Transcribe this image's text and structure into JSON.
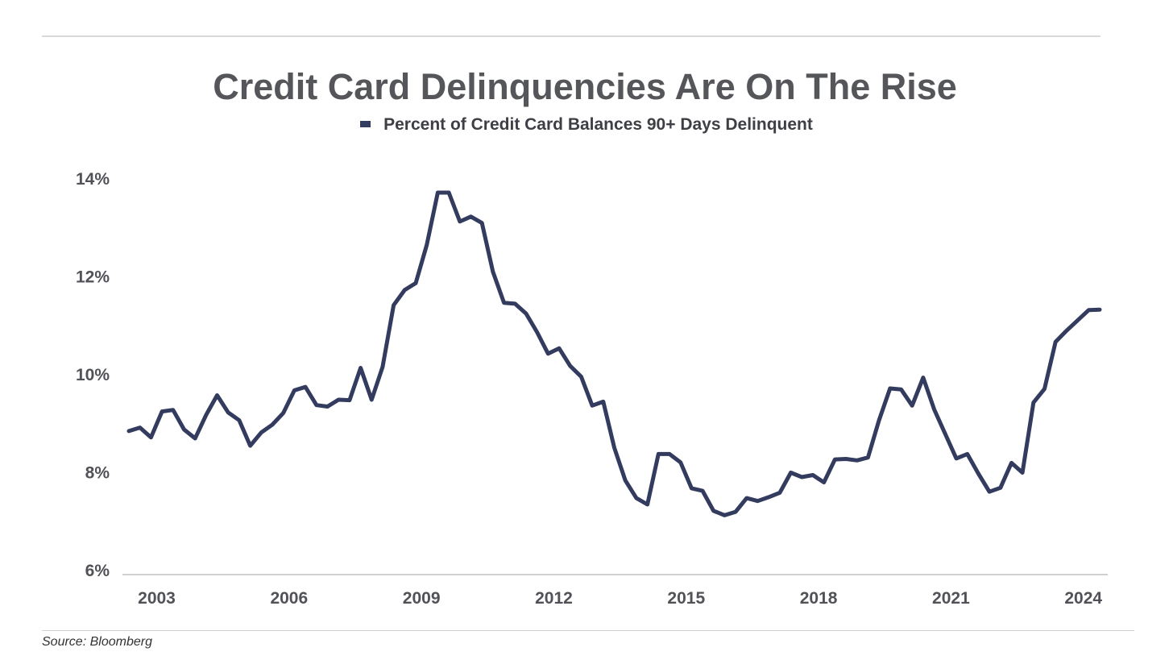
{
  "chart_data": {
    "type": "line",
    "title": "Credit Card Delinquencies Are On The Rise",
    "legend": "Percent of Credit Card Balances 90+ Days Delinquent",
    "source": "Source: Bloomberg",
    "series_color": "#333b5e",
    "xlabel": "",
    "ylabel": "",
    "ylim": [
      6,
      14
    ],
    "xlim": [
      2002.87,
      2024.87
    ],
    "yticks": [
      6,
      8,
      10,
      12,
      14
    ],
    "ytick_labels": [
      "6%",
      "8%",
      "10%",
      "12%",
      "14%"
    ],
    "xticks": [
      2003.5,
      2006.5,
      2009.5,
      2012.5,
      2015.5,
      2018.5,
      2021.5,
      2024.5
    ],
    "xtick_labels": [
      "2003",
      "2006",
      "2009",
      "2012",
      "2015",
      "2018",
      "2021",
      "2024"
    ],
    "series": [
      {
        "name": "Percent of Credit Card Balances 90+ Days Delinquent",
        "x": [
          2002.87,
          2003.12,
          2003.37,
          2003.62,
          2003.87,
          2004.12,
          2004.37,
          2004.62,
          2004.87,
          2005.12,
          2005.37,
          2005.62,
          2005.87,
          2006.12,
          2006.37,
          2006.62,
          2006.87,
          2007.12,
          2007.37,
          2007.62,
          2007.87,
          2008.12,
          2008.37,
          2008.62,
          2008.87,
          2009.12,
          2009.37,
          2009.62,
          2009.87,
          2010.12,
          2010.37,
          2010.62,
          2010.87,
          2011.12,
          2011.37,
          2011.62,
          2011.87,
          2012.12,
          2012.37,
          2012.62,
          2012.87,
          2013.12,
          2013.37,
          2013.62,
          2013.87,
          2014.12,
          2014.37,
          2014.62,
          2014.87,
          2015.12,
          2015.37,
          2015.62,
          2015.87,
          2016.12,
          2016.37,
          2016.62,
          2016.87,
          2017.12,
          2017.37,
          2017.62,
          2017.87,
          2018.12,
          2018.37,
          2018.62,
          2018.87,
          2019.12,
          2019.37,
          2019.62,
          2019.87,
          2020.12,
          2020.37,
          2020.62,
          2020.87,
          2021.12,
          2021.37,
          2021.62,
          2021.87,
          2022.12,
          2022.37,
          2022.62,
          2022.87,
          2023.12,
          2023.37,
          2023.62,
          2023.87,
          2024.12,
          2024.37,
          2024.62,
          2024.87
        ],
        "values": [
          8.85,
          8.92,
          8.72,
          9.25,
          9.28,
          8.88,
          8.7,
          9.18,
          9.58,
          9.23,
          9.07,
          8.55,
          8.82,
          8.98,
          9.22,
          9.68,
          9.75,
          9.38,
          9.35,
          9.49,
          9.48,
          10.14,
          9.49,
          10.16,
          11.42,
          11.73,
          11.87,
          12.65,
          13.72,
          13.72,
          13.13,
          13.23,
          13.1,
          12.1,
          11.47,
          11.45,
          11.25,
          10.87,
          10.43,
          10.54,
          10.18,
          9.96,
          9.37,
          9.45,
          8.51,
          7.84,
          7.48,
          7.35,
          8.38,
          8.38,
          8.21,
          7.68,
          7.63,
          7.22,
          7.13,
          7.2,
          7.48,
          7.42,
          7.5,
          7.59,
          8.0,
          7.91,
          7.95,
          7.8,
          8.27,
          8.28,
          8.25,
          8.31,
          9.07,
          9.72,
          9.7,
          9.37,
          9.94,
          9.29,
          8.79,
          8.29,
          8.38,
          7.98,
          7.61,
          7.69,
          8.2,
          8.0,
          9.43,
          9.71,
          10.67,
          10.9,
          11.11,
          11.32,
          11.33
        ]
      }
    ]
  }
}
